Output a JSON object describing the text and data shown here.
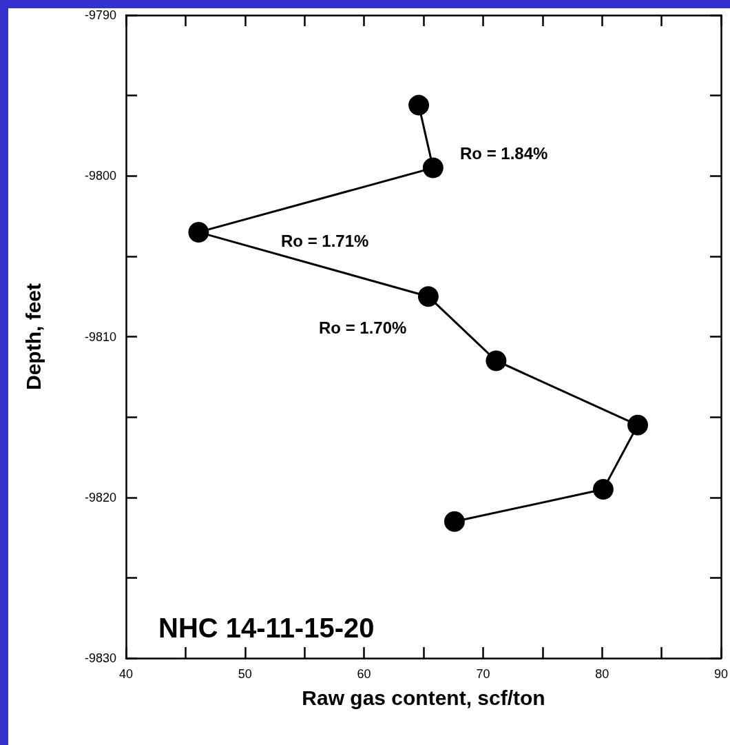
{
  "chart_data": {
    "type": "line",
    "title": "NHC 14-11-15-20",
    "xlabel": "Raw gas content, scf/ton",
    "ylabel": "Depth, feet",
    "x": [
      64.6,
      65.8,
      46.1,
      65.4,
      71.1,
      83.0,
      80.1,
      67.6
    ],
    "series": [
      {
        "color": "#000000",
        "values": [
          -9795.6,
          -9799.5,
          -9803.5,
          -9807.5,
          -9811.5,
          -9815.5,
          -9819.5,
          -9821.5
        ]
      }
    ],
    "xlim": [
      40,
      90
    ],
    "xticks": [
      40,
      {
        "value": 45,
        "label": null
      },
      50,
      {
        "value": 55,
        "label": null
      },
      60,
      {
        "value": 65,
        "label": null
      },
      70,
      {
        "value": 75,
        "label": null
      },
      80,
      {
        "value": 85,
        "label": null
      },
      90
    ],
    "ylim": [
      -9830,
      -9790
    ],
    "yticks": [
      -9830,
      {
        "value": -9825,
        "label": null
      },
      -9820,
      {
        "value": -9815,
        "label": null
      },
      -9810,
      {
        "value": -9805,
        "label": null
      },
      -9800,
      {
        "value": -9795,
        "label": null
      },
      -9790
    ],
    "annotations": [
      "Ro = 1.84%",
      "Ro = 1.71%",
      "Ro = 1.70%"
    ],
    "marker": "circle",
    "line_style": "solid",
    "grid": false,
    "legend": false
  }
}
